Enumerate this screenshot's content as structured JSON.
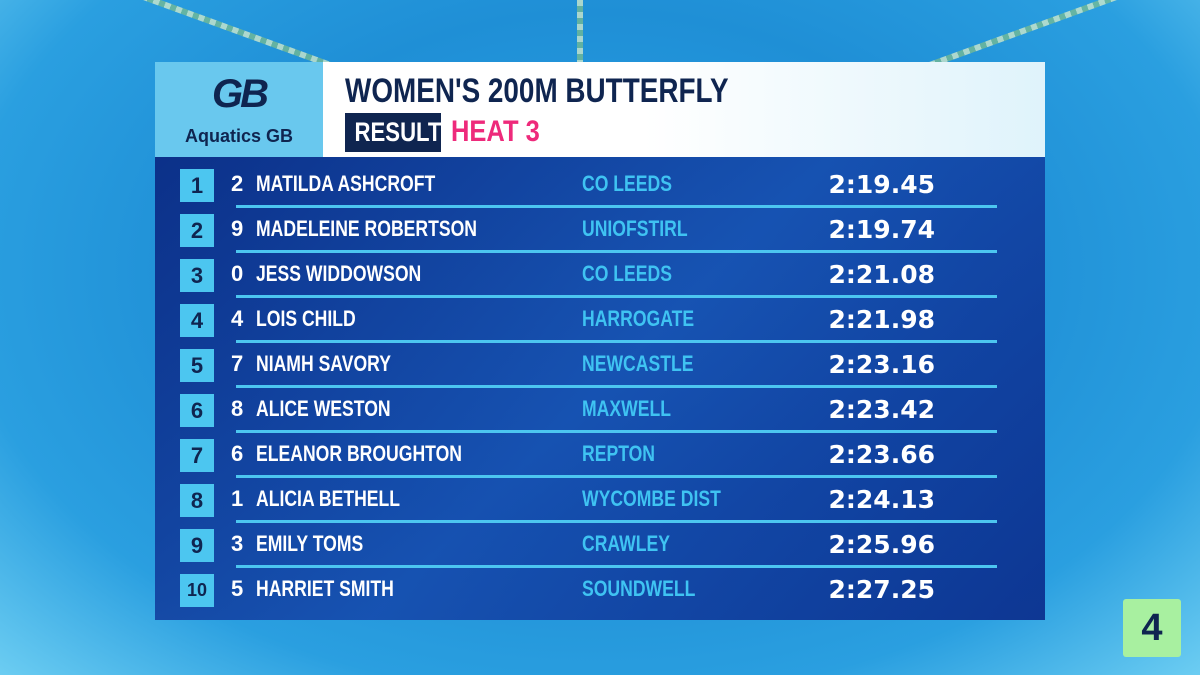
{
  "header": {
    "logo_mark": "GB",
    "logo_text": "Aquatics GB",
    "title": "WOMEN'S 200M BUTTERFLY",
    "badge": "RESULT",
    "heat": "HEAT 3"
  },
  "table": {
    "rows": [
      [
        "1",
        "2",
        "MATILDA ASHCROFT",
        "CO LEEDS",
        "2:19.45"
      ],
      [
        "2",
        "9",
        "MADELEINE ROBERTSON",
        "UNIOFSTIRL",
        "2:19.74"
      ],
      [
        "3",
        "0",
        "JESS WIDDOWSON",
        "CO LEEDS",
        "2:21.08"
      ],
      [
        "4",
        "4",
        "LOIS CHILD",
        "HARROGATE",
        "2:21.98"
      ],
      [
        "5",
        "7",
        "NIAMH SAVORY",
        "NEWCASTLE",
        "2:23.16"
      ],
      [
        "6",
        "8",
        "ALICE WESTON",
        "MAXWELL",
        "2:23.42"
      ],
      [
        "7",
        "6",
        "ELEANOR BROUGHTON",
        "REPTON",
        "2:23.66"
      ],
      [
        "8",
        "1",
        "ALICIA BETHELL",
        "WYCOMBE DIST",
        "2:24.13"
      ],
      [
        "9",
        "3",
        "EMILY TOMS",
        "CRAWLEY",
        "2:25.96"
      ],
      [
        "10",
        "5",
        "HARRIET SMITH",
        "SOUNDWELL",
        "2:27.25"
      ]
    ]
  },
  "channel_logo": "4"
}
